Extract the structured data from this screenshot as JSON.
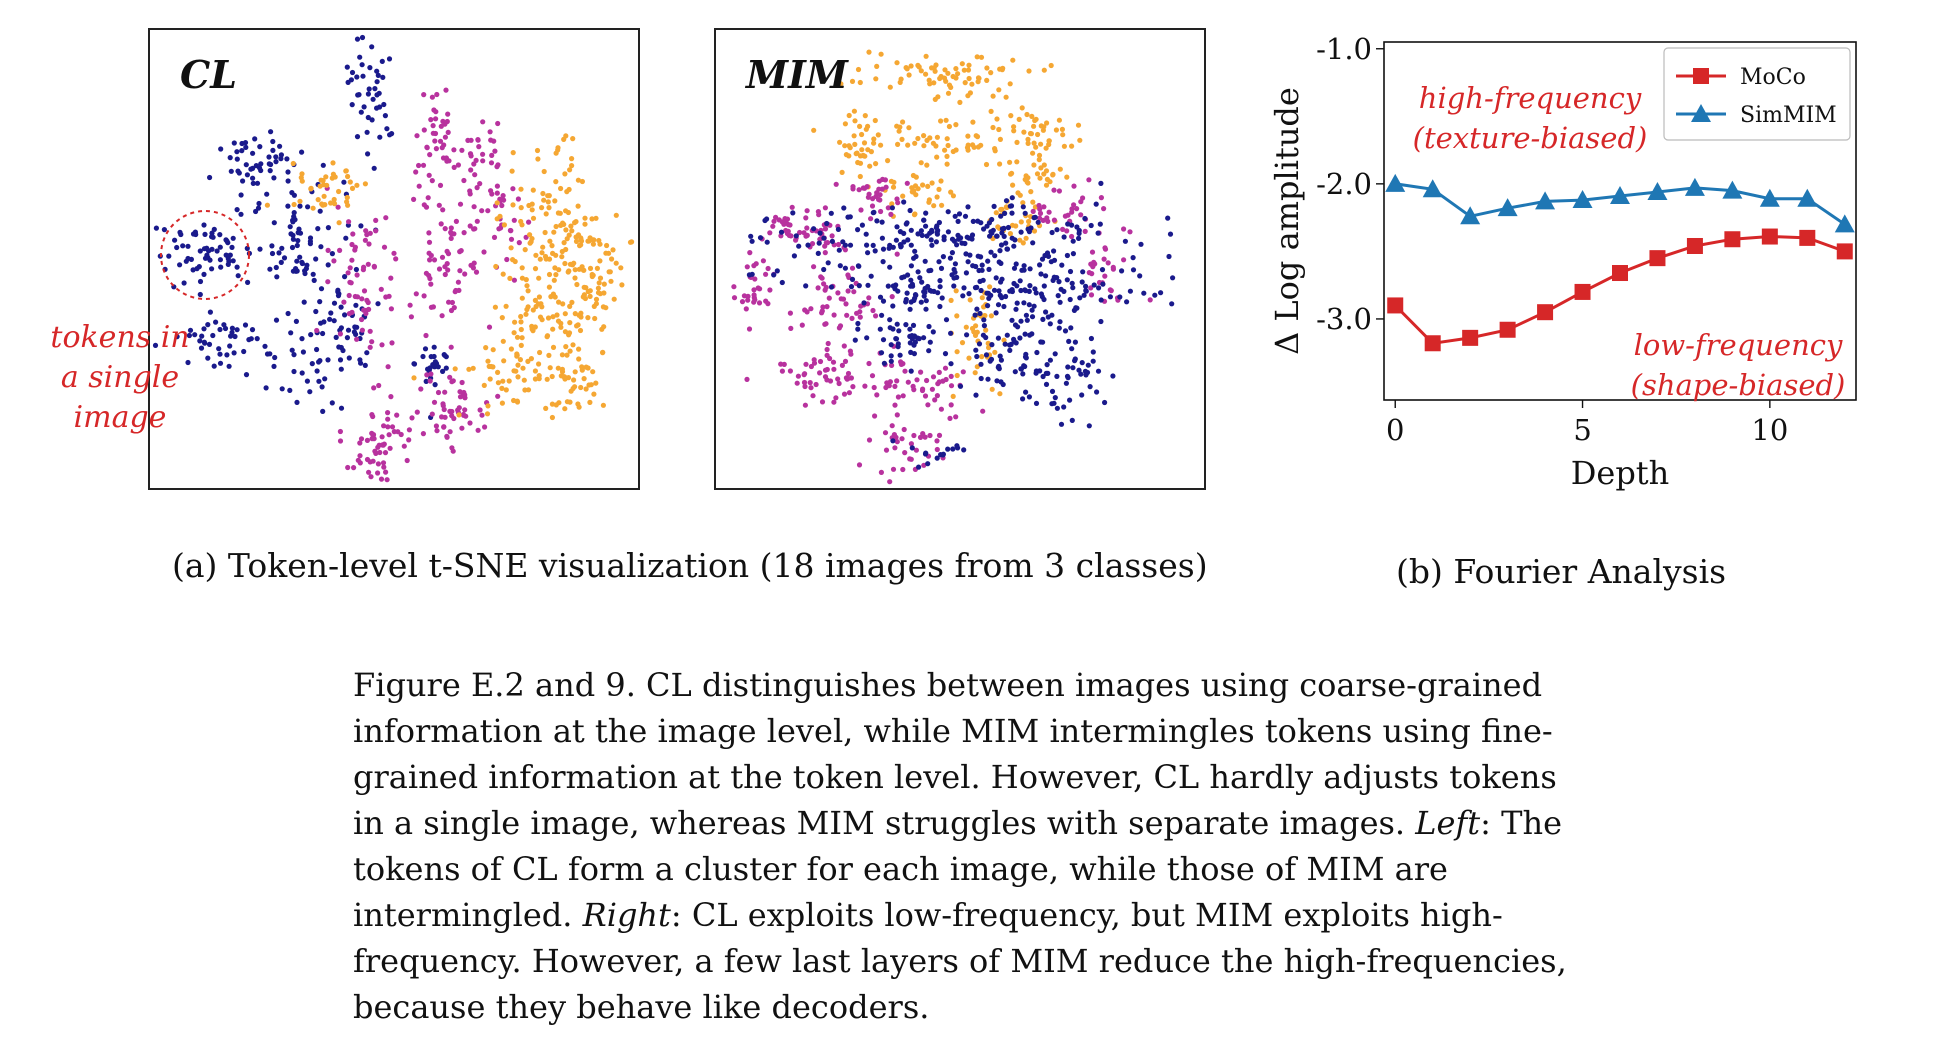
{
  "tsne": {
    "cl_title": "CL",
    "mim_title": "MIM",
    "annotation_line1": "tokens in",
    "annotation_line2": "a single image",
    "subcaption": "(a) Token-level t-SNE visualization (18 images from 3 classes)",
    "colors": {
      "class1": "#1a1a8c",
      "class2": "#b8329e",
      "class3": "#f5a733",
      "highlight": "#d62728"
    }
  },
  "chart_data": {
    "type": "line",
    "x": [
      0,
      1,
      2,
      3,
      4,
      5,
      6,
      7,
      8,
      9,
      10,
      11,
      12
    ],
    "series": [
      {
        "name": "MoCo",
        "color": "#d62728",
        "marker": "square",
        "values": [
          -2.9,
          -3.18,
          -3.14,
          -3.08,
          -2.95,
          -2.8,
          -2.66,
          -2.55,
          -2.46,
          -2.41,
          -2.39,
          -2.4,
          -2.5
        ]
      },
      {
        "name": "SimMIM",
        "color": "#1f77b4",
        "marker": "triangle",
        "values": [
          -2.0,
          -2.04,
          -2.24,
          -2.18,
          -2.13,
          -2.12,
          -2.09,
          -2.06,
          -2.03,
          -2.05,
          -2.11,
          -2.11,
          -2.3
        ]
      }
    ],
    "xlabel": "Depth",
    "ylabel": "Δ Log amplitude",
    "xlim": [
      -0.3,
      12.3
    ],
    "ylim": [
      -3.6,
      -0.95
    ],
    "xticks": [
      0,
      5,
      10
    ],
    "xtick_labels": [
      "0",
      "5",
      "10"
    ],
    "yticks": [
      -1.0,
      -2.0,
      -3.0
    ],
    "ytick_labels": [
      "-1.0",
      "-2.0",
      "-3.0"
    ],
    "legend_position": "top-right",
    "grid": false,
    "annotations": [
      {
        "line1": "high-frequency",
        "line2": "(texture-biased)",
        "color": "#d62728"
      },
      {
        "line1": "low-frequency",
        "line2": "(shape-biased)",
        "color": "#d62728"
      }
    ],
    "subcaption": "(b) Fourier Analysis"
  },
  "caption": {
    "lines": [
      "Figure E.2 and 9. CL distinguishes between images using coarse-grained",
      "information at the image level, while MIM intermingles tokens using fine-",
      "grained information at the token level. However, CL hardly adjusts tokens",
      "in a single image, whereas MIM struggles with separate images."
    ],
    "left_label": "Left",
    "left_text_a": ": The",
    "left_text_b": "tokens of CL form a cluster for each image, while those of MIM are",
    "left_text_c": "intermingled.",
    "right_label": "Right",
    "right_text_a": ": CL exploits low-frequency, but MIM exploits high-",
    "right_text_b": "frequency. However, a few last layers of MIM reduce the high-frequencies,",
    "right_text_c": "because they behave like decoders."
  }
}
